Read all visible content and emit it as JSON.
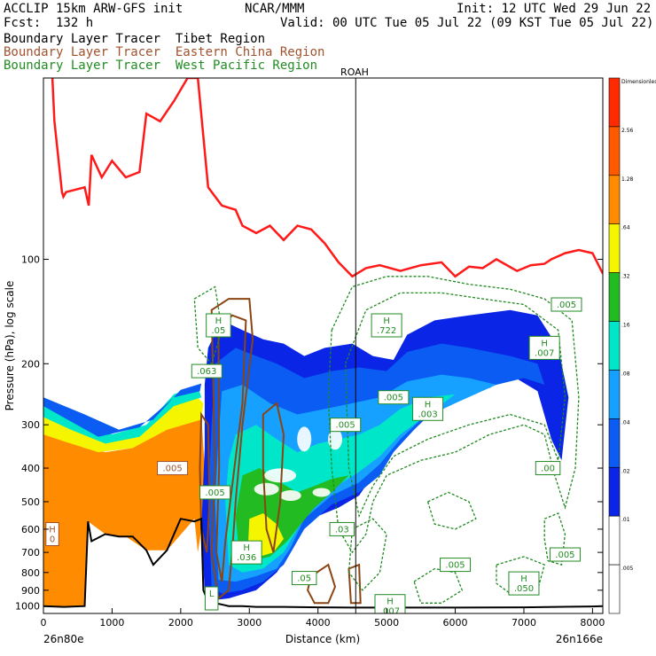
{
  "header": {
    "line1_left": "ACCLIP 15km ARW-GFS init",
    "line1_mid": "NCAR/MMM",
    "line1_right": "Init: 12 UTC Wed 29 Jun 22",
    "line2_left": "Fcst:  132 h",
    "line2_right": "Valid: 00 UTC Tue 05 Jul 22 (09 KST Tue 05 Jul 22)",
    "legend": [
      {
        "text": "Boundary Layer Tracer  Tibet Region",
        "color": "#000000"
      },
      {
        "text": "Boundary Layer Tracer  Eastern China Region",
        "color": "#a0522d"
      },
      {
        "text": "Boundary Layer Tracer  West Pacific Region",
        "color": "#228b22"
      }
    ]
  },
  "colors": {
    "tropopause": "#ff1a1a",
    "terrain": "#000000",
    "eastern_china": "#8b4513",
    "west_pacific": "#1f8a1f"
  },
  "chart_data": {
    "type": "heatmap",
    "xlabel": "Distance (km)",
    "ylabel": "Pressure (hPa), log scale",
    "xlim": [
      0,
      8150
    ],
    "ylim": [
      1050,
      30
    ],
    "y_scale": "log",
    "x_ticks": [
      0,
      1000,
      2000,
      3000,
      4000,
      5000,
      6000,
      7000,
      8000
    ],
    "y_ticks": [
      100,
      200,
      300,
      400,
      500,
      600,
      700,
      800,
      900,
      1000
    ],
    "x_start_label": "26n80e",
    "x_end_label": "26n166e",
    "marker": {
      "label": "ROAH",
      "x": 4550
    },
    "colorbar": {
      "levels": [
        "Dimensionless",
        "2.56",
        "1.28",
        ".64",
        ".32",
        ".16",
        ".08",
        ".04",
        ".02",
        ".01",
        ".005"
      ],
      "colors": [
        "#ff2a00",
        "#ff5a00",
        "#ff8c00",
        "#f5f500",
        "#22bb22",
        "#00e6c8",
        "#16a0ff",
        "#0a5cf2",
        "#0a25e6",
        "#ffffff",
        "#ffffff"
      ]
    },
    "tropopause_pressure": {
      "x": [
        130,
        160,
        270,
        290,
        330,
        600,
        660,
        700,
        850,
        1000,
        1200,
        1400,
        1500,
        1700,
        1900,
        2100,
        2250,
        2400,
        2600,
        2800,
        2900,
        3100,
        3300,
        3500,
        3700,
        3900,
        4100,
        4300,
        4500,
        4700,
        4900,
        5200,
        5500,
        5800,
        6000,
        6200,
        6400,
        6600,
        6900,
        7100,
        7300,
        7400,
        7600,
        7800,
        8000,
        8150
      ],
      "y": [
        30,
        40,
        64,
        66,
        64,
        62,
        70,
        50,
        58,
        52,
        58,
        56,
        38,
        40,
        35,
        30,
        30,
        62,
        70,
        72,
        80,
        84,
        80,
        88,
        80,
        82,
        90,
        102,
        112,
        106,
        104,
        108,
        104,
        102,
        112,
        105,
        106,
        100,
        108,
        104,
        103,
        100,
        96,
        94,
        96,
        110
      ]
    },
    "terrain_pressure": {
      "x": [
        0,
        300,
        600,
        650,
        700,
        900,
        1100,
        1300,
        1500,
        1600,
        1800,
        2000,
        2200,
        2300,
        2330,
        2400,
        2700,
        2900,
        3100,
        3500,
        4000,
        4500,
        5000,
        6000,
        7000,
        8000,
        8150
      ],
      "y": [
        1000,
        1005,
        1000,
        570,
        650,
        620,
        630,
        630,
        690,
        760,
        690,
        560,
        570,
        560,
        900,
        970,
        1000,
        1000,
        1005,
        1005,
        1008,
        1010,
        1010,
        1010,
        1008,
        1002,
        1000
      ]
    },
    "series": [
      {
        "name": "Boundary Layer Tracer  Tibet Region",
        "field": "filled",
        "band_ticks": [
          ".005",
          ".01",
          ".02",
          ".04",
          ".08",
          ".16",
          ".32",
          ".64",
          "1.28",
          "2.56"
        ]
      },
      {
        "name": "Boundary Layer Tracer  Eastern China Region",
        "field": "contour"
      },
      {
        "name": "Boundary Layer Tracer  West Pacific Region",
        "field": "contour_dashed"
      }
    ],
    "annotations": [
      {
        "text": "H\n0",
        "x": 130,
        "p": 620,
        "color": "#a0522d"
      },
      {
        "text": ".005",
        "x": 1880,
        "p": 400,
        "color": "#a0522d"
      },
      {
        "text": "H\n.05",
        "x": 2550,
        "p": 155,
        "color": "#228b22"
      },
      {
        "text": ".063",
        "x": 2380,
        "p": 210,
        "color": "#228b22"
      },
      {
        "text": "H\n.036",
        "x": 2960,
        "p": 700,
        "color": "#228b22"
      },
      {
        "text": ".05",
        "x": 3800,
        "p": 830,
        "color": "#228b22"
      },
      {
        "text": "H\n.722",
        "x": 5000,
        "p": 155,
        "color": "#228b22"
      },
      {
        "text": ".005",
        "x": 5100,
        "p": 250,
        "color": "#228b22"
      },
      {
        "text": "H\n.003",
        "x": 5600,
        "p": 270,
        "color": "#228b22"
      },
      {
        "text": ".005",
        "x": 7620,
        "p": 135,
        "color": "#228b22"
      },
      {
        "text": "H\n.007",
        "x": 7300,
        "p": 180,
        "color": "#228b22"
      },
      {
        "text": ".005",
        "x": 6000,
        "p": 760,
        "color": "#228b22"
      },
      {
        "text": "H\n.050",
        "x": 7000,
        "p": 860,
        "color": "#228b22"
      },
      {
        "text": ".00",
        "x": 7350,
        "p": 400,
        "color": "#228b22"
      },
      {
        "text": ".005",
        "x": 7600,
        "p": 710,
        "color": "#228b22"
      },
      {
        "text": "H\n.007",
        "x": 5050,
        "p": 1000,
        "color": "#228b22"
      },
      {
        "text": ".03",
        "x": 4350,
        "p": 600,
        "color": "#228b22"
      },
      {
        "text": ".005",
        "x": 4400,
        "p": 300,
        "color": "#228b22"
      },
      {
        "text": ".005",
        "x": 2500,
        "p": 470,
        "color": "#228b22"
      },
      {
        "text": "L\n",
        "x": 2450,
        "p": 950,
        "color": "#228b22"
      }
    ]
  }
}
